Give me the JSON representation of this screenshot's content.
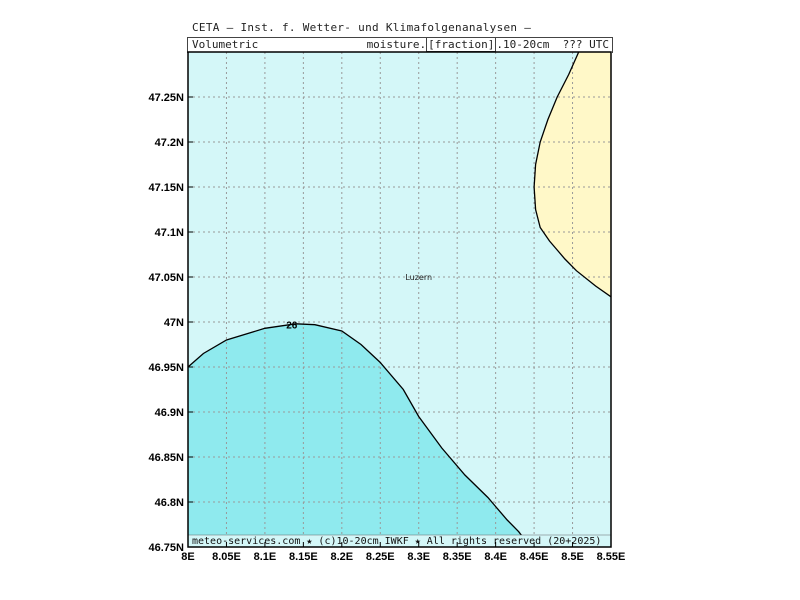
{
  "header": {
    "line1": "CETA — Inst. f. Wetter- und Klimafolgenanalysen —",
    "line2_left": "Volumetric",
    "line2_right_prefix": "moisture.",
    "line2_right_boxed": "[fraction]",
    "line2_right_suffix": ".10-20cm  ??? UTC"
  },
  "map": {
    "lon_range": [
      8.0,
      8.55
    ],
    "lat_range": [
      46.75,
      47.3
    ],
    "grid": true,
    "lon_ticks": [
      {
        "value": 8.0,
        "label": "8E"
      },
      {
        "value": 8.05,
        "label": "8.05E"
      },
      {
        "value": 8.1,
        "label": "8.1E"
      },
      {
        "value": 8.15,
        "label": "8.15E"
      },
      {
        "value": 8.2,
        "label": "8.2E"
      },
      {
        "value": 8.25,
        "label": "8.25E"
      },
      {
        "value": 8.3,
        "label": "8.3E"
      },
      {
        "value": 8.35,
        "label": "8.35E"
      },
      {
        "value": 8.4,
        "label": "8.4E"
      },
      {
        "value": 8.45,
        "label": "8.45E"
      },
      {
        "value": 8.5,
        "label": "8.5E"
      },
      {
        "value": 8.55,
        "label": "8.55E"
      }
    ],
    "lat_ticks": [
      {
        "value": 46.75,
        "label": "46.75N"
      },
      {
        "value": 46.8,
        "label": "46.8N"
      },
      {
        "value": 46.85,
        "label": "46.85N"
      },
      {
        "value": 46.9,
        "label": "46.9N"
      },
      {
        "value": 46.95,
        "label": "46.95N"
      },
      {
        "value": 47.0,
        "label": "47N"
      },
      {
        "value": 47.05,
        "label": "47.05N"
      },
      {
        "value": 47.1,
        "label": "47.1N"
      },
      {
        "value": 47.15,
        "label": "47.15N"
      },
      {
        "value": 47.2,
        "label": "47.2N"
      },
      {
        "value": 47.25,
        "label": "47.25N"
      }
    ],
    "city": {
      "name": "Luzern",
      "lon": 8.306,
      "lat": 47.05
    },
    "contour_label": {
      "text": "26",
      "lon": 8.135,
      "lat": 46.997
    },
    "colors": {
      "background_field": "#d4f7f8",
      "low_region": "#8feaee",
      "high_region": "#fff8c8",
      "contour_line": "#000000",
      "grid": "#999999"
    },
    "low_region_boundary": [
      [
        8.0,
        46.95
      ],
      [
        8.02,
        46.965
      ],
      [
        8.05,
        46.98
      ],
      [
        8.1,
        46.993
      ],
      [
        8.14,
        46.998
      ],
      [
        8.165,
        46.997
      ],
      [
        8.2,
        46.99
      ],
      [
        8.225,
        46.975
      ],
      [
        8.25,
        46.955
      ],
      [
        8.28,
        46.925
      ],
      [
        8.3,
        46.895
      ],
      [
        8.33,
        46.86
      ],
      [
        8.36,
        46.83
      ],
      [
        8.39,
        46.805
      ],
      [
        8.4,
        46.795
      ],
      [
        8.415,
        46.78
      ],
      [
        8.43,
        46.767
      ],
      [
        8.445,
        46.75
      ]
    ],
    "high_region_boundary": [
      [
        8.508,
        47.3
      ],
      [
        8.495,
        47.275
      ],
      [
        8.48,
        47.25
      ],
      [
        8.468,
        47.225
      ],
      [
        8.458,
        47.2
      ],
      [
        8.452,
        47.175
      ],
      [
        8.45,
        47.15
      ],
      [
        8.452,
        47.125
      ],
      [
        8.458,
        47.105
      ],
      [
        8.47,
        47.09
      ],
      [
        8.48,
        47.08
      ],
      [
        8.49,
        47.07
      ],
      [
        8.505,
        47.057
      ],
      [
        8.53,
        47.04
      ],
      [
        8.55,
        47.028
      ]
    ]
  },
  "footer": {
    "text": "meteo-services.com ★ (c)10-20cm IWKF ★ All rights reserved (20+2025)"
  }
}
